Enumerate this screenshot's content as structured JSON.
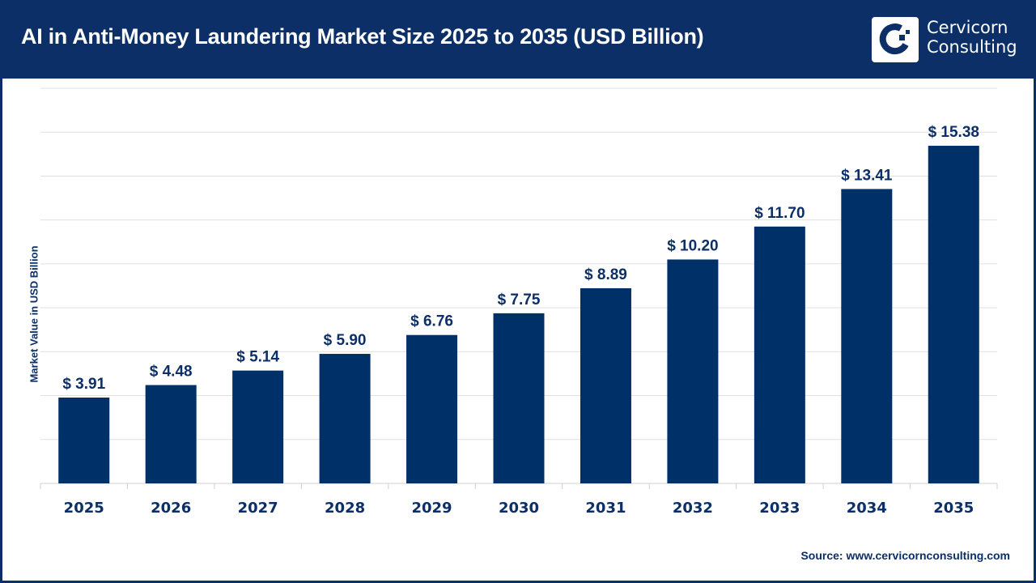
{
  "header": {
    "title": "AI in Anti-Money Laundering Market Size 2025 to 2035 (USD Billion)"
  },
  "logo": {
    "line1": "Cervicorn",
    "line2": "Consulting"
  },
  "source": "Source: www.cervicornconsulting.com",
  "colors": {
    "bar": "#003068",
    "header": "#0b2f66",
    "grid": "#e0e0e0"
  },
  "chart_data": {
    "type": "bar",
    "title": "AI in Anti-Money Laundering Market Size 2025 to 2035 (USD Billion)",
    "xlabel": "",
    "ylabel": "Market Value in USD Billion",
    "categories": [
      "2025",
      "2026",
      "2027",
      "2028",
      "2029",
      "2030",
      "2031",
      "2032",
      "2033",
      "2034",
      "2035"
    ],
    "values": [
      3.91,
      4.48,
      5.14,
      5.9,
      6.76,
      7.75,
      8.89,
      10.2,
      11.7,
      13.41,
      15.38
    ],
    "data_labels": [
      "$ 3.91",
      "$ 4.48",
      "$ 5.14",
      "$ 5.90",
      "$ 6.76",
      "$ 7.75",
      "$ 8.89",
      "$ 10.20",
      "$ 11.70",
      "$ 13.41",
      "$ 15.38"
    ],
    "ylim": [
      0,
      18
    ],
    "grid": true,
    "y_tick_labels_shown": false
  }
}
